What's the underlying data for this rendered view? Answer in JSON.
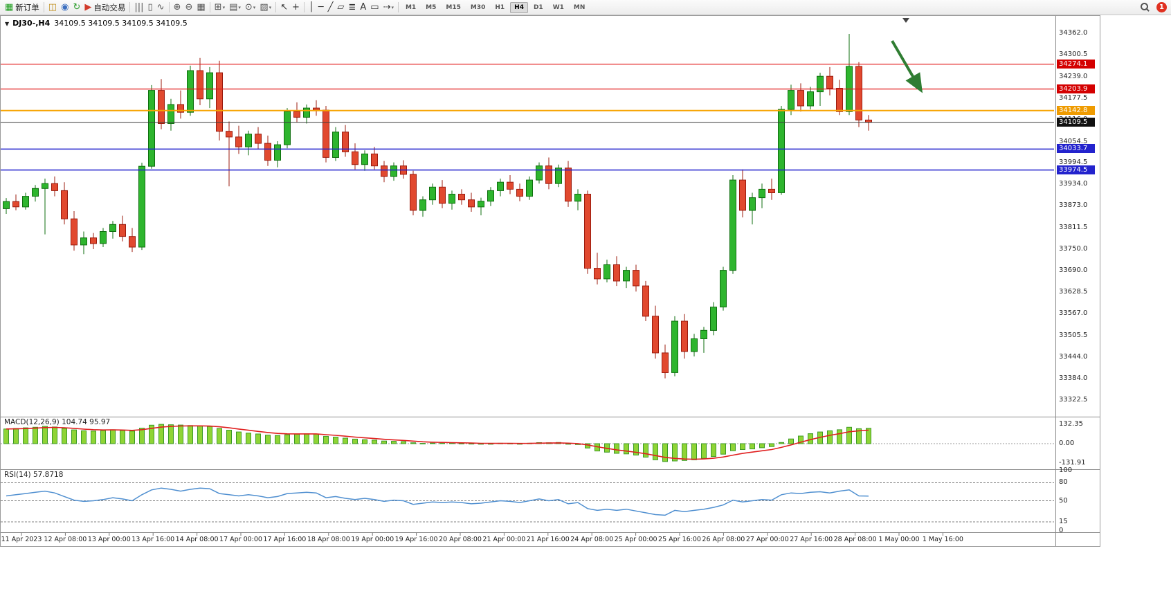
{
  "toolbar": {
    "items": [
      {
        "type": "button",
        "name": "new-order-button",
        "icon": "new-order-icon",
        "glyph": "▦",
        "color": "#1c9c1c",
        "label": "新订单"
      },
      {
        "type": "sep"
      },
      {
        "type": "icon",
        "name": "charts-icon",
        "glyph": "◫",
        "color": "#c09020"
      },
      {
        "type": "icon",
        "name": "market-watch-icon",
        "glyph": "◉",
        "color": "#3a6ec0"
      },
      {
        "type": "icon",
        "name": "refresh-cycle-icon",
        "glyph": "↻",
        "color": "#2f9e2f"
      },
      {
        "type": "button",
        "name": "auto-trading-button",
        "icon": "auto-trading-icon",
        "glyph": "▶",
        "color": "#d23b2b",
        "label": "自动交易"
      },
      {
        "type": "sep"
      },
      {
        "type": "icon",
        "name": "bar-chart-type-icon",
        "glyph": "|||",
        "color": "#555555"
      },
      {
        "type": "icon",
        "name": "candlestick-chart-type-icon",
        "glyph": "▯",
        "color": "#555555"
      },
      {
        "type": "icon",
        "name": "line-chart-type-icon",
        "glyph": "∿",
        "color": "#555555"
      },
      {
        "type": "sep"
      },
      {
        "type": "icon",
        "name": "zoom-in-icon",
        "glyph": "⊕",
        "color": "#555555"
      },
      {
        "type": "icon",
        "name": "zoom-out-icon",
        "glyph": "⊖",
        "color": "#555555"
      },
      {
        "type": "icon",
        "name": "tile-windows-icon",
        "glyph": "▦",
        "color": "#555555"
      },
      {
        "type": "sep"
      },
      {
        "type": "icon",
        "name": "new-chart-icon",
        "glyph": "⊞",
        "color": "#555555",
        "caret": true
      },
      {
        "type": "icon",
        "name": "profiles-icon",
        "glyph": "▤",
        "color": "#555555",
        "caret": true
      },
      {
        "type": "icon",
        "name": "period-clock-icon",
        "glyph": "⊙",
        "color": "#555555",
        "caret": true
      },
      {
        "type": "icon",
        "name": "template-icon",
        "glyph": "▨",
        "color": "#555555",
        "caret": true
      },
      {
        "type": "sep"
      },
      {
        "type": "icon",
        "name": "cursor-icon",
        "glyph": "↖",
        "color": "#333333"
      },
      {
        "type": "icon",
        "name": "crosshair-icon",
        "glyph": "+",
        "color": "#333333"
      },
      {
        "type": "sep"
      },
      {
        "type": "icon",
        "name": "vertical-line-icon",
        "glyph": "│",
        "color": "#333333"
      },
      {
        "type": "icon",
        "name": "horizontal-line-icon",
        "glyph": "─",
        "color": "#333333"
      },
      {
        "type": "icon",
        "name": "trendline-icon",
        "glyph": "╱",
        "color": "#333333"
      },
      {
        "type": "icon",
        "name": "channel-icon",
        "glyph": "▱",
        "color": "#333333"
      },
      {
        "type": "icon",
        "name": "fibonacci-icon",
        "glyph": "≣",
        "color": "#333333"
      },
      {
        "type": "icon",
        "name": "text-icon",
        "glyph": "A",
        "color": "#333333"
      },
      {
        "type": "icon",
        "name": "text-label-icon",
        "glyph": "▭",
        "color": "#333333"
      },
      {
        "type": "icon",
        "name": "arrows-tool-icon",
        "glyph": "⇢",
        "color": "#333333",
        "caret": true
      },
      {
        "type": "sep"
      },
      {
        "type": "tf-group"
      },
      {
        "type": "spacer"
      },
      {
        "type": "search"
      },
      {
        "type": "badge"
      }
    ],
    "timeframes": {
      "items": [
        "M1",
        "M5",
        "M15",
        "M30",
        "H1",
        "H4",
        "D1",
        "W1",
        "MN"
      ],
      "active": "H4"
    },
    "notification_count": "1"
  },
  "chart": {
    "symbol_label": "DJ30-,H4",
    "ohlc_label": "34109.5 34109.5 34109.5 34109.5",
    "macd": {
      "label": "MACD(12,26,9) 104.74 95.97"
    },
    "rsi": {
      "label": "RSI(14) 57.8718"
    },
    "colors": {
      "up_fill": "#2eb52e",
      "up_stroke": "#0e6e0e",
      "down_fill": "#e1492f",
      "down_stroke": "#9b1b0e",
      "macd_fill": "#8fd435",
      "macd_stroke": "#3c9a26",
      "signal": "#e01f1f",
      "rsi": "#4f8fd0",
      "arrow": "#2f7d32",
      "level_red": "#e21a1a",
      "level_orange": "#f7a300",
      "level_blue": "#2323cd",
      "level_black": "#3c3c3c"
    }
  },
  "chart_data": {
    "type": "candlestick",
    "symbol": "DJ30-",
    "timeframe": "H4",
    "current_price": 34109.5,
    "y_ticks": [
      "34362.0",
      "34300.5",
      "34239.0",
      "34177.5",
      "34116.0",
      "34054.5",
      "33994.5",
      "33934.0",
      "33873.0",
      "33811.5",
      "33750.0",
      "33690.0",
      "33628.5",
      "33567.0",
      "33505.5",
      "33444.0",
      "33384.0",
      "33322.5"
    ],
    "x_labels": [
      "11 Apr 2023",
      "12 Apr 08:00",
      "13 Apr 00:00",
      "13 Apr 16:00",
      "14 Apr 08:00",
      "17 Apr 00:00",
      "17 Apr 16:00",
      "18 Apr 08:00",
      "19 Apr 00:00",
      "19 Apr 16:00",
      "20 Apr 08:00",
      "21 Apr 00:00",
      "21 Apr 16:00",
      "24 Apr 08:00",
      "25 Apr 00:00",
      "25 Apr 16:00",
      "26 Apr 08:00",
      "27 Apr 00:00",
      "27 Apr 16:00",
      "28 Apr 08:00",
      "1 May 00:00",
      "1 May 16:00"
    ],
    "levels": [
      {
        "price": 34274.1,
        "label": "34274.1",
        "color": "#e21a1a",
        "tag_bg": "#d40000",
        "width": 1.2
      },
      {
        "price": 34203.9,
        "label": "34203.9",
        "color": "#e21a1a",
        "tag_bg": "#d40000",
        "width": 1.2
      },
      {
        "price": 34142.8,
        "label": "34142.8",
        "color": "#f7a300",
        "tag_bg": "#ef9b00",
        "width": 2
      },
      {
        "price": 34109.5,
        "label": "34109.5",
        "color": "#3c3c3c",
        "tag_bg": "#101010",
        "width": 1
      },
      {
        "price": 34033.7,
        "label": "34033.7",
        "color": "#2323cd",
        "tag_bg": "#2323cd",
        "width": 1.5
      },
      {
        "price": 33974.5,
        "label": "33974.5",
        "color": "#2323cd",
        "tag_bg": "#2323cd",
        "width": 1.5
      }
    ],
    "ohlc": [
      [
        33865,
        33895,
        33850,
        33885
      ],
      [
        33885,
        33905,
        33860,
        33870
      ],
      [
        33870,
        33910,
        33862,
        33900
      ],
      [
        33900,
        33932,
        33885,
        33922
      ],
      [
        33922,
        33950,
        33792,
        33936
      ],
      [
        33936,
        33956,
        33900,
        33916
      ],
      [
        33916,
        33940,
        33820,
        33836
      ],
      [
        33836,
        33858,
        33746,
        33762
      ],
      [
        33762,
        33800,
        33736,
        33782
      ],
      [
        33782,
        33796,
        33750,
        33766
      ],
      [
        33766,
        33810,
        33756,
        33800
      ],
      [
        33800,
        33830,
        33780,
        33820
      ],
      [
        33820,
        33845,
        33772,
        33786
      ],
      [
        33786,
        33810,
        33742,
        33756
      ],
      [
        33756,
        33995,
        33748,
        33985
      ],
      [
        33985,
        34215,
        33978,
        34200
      ],
      [
        34200,
        34232,
        34090,
        34106
      ],
      [
        34106,
        34176,
        34086,
        34160
      ],
      [
        34160,
        34200,
        34120,
        34138
      ],
      [
        34138,
        34270,
        34128,
        34256
      ],
      [
        34256,
        34292,
        34158,
        34176
      ],
      [
        34176,
        34266,
        34150,
        34250
      ],
      [
        34250,
        34284,
        34058,
        34084
      ],
      [
        34084,
        34112,
        33928,
        34068
      ],
      [
        34068,
        34100,
        34020,
        34040
      ],
      [
        34040,
        34086,
        34016,
        34076
      ],
      [
        34076,
        34096,
        34034,
        34050
      ],
      [
        34050,
        34072,
        33986,
        34002
      ],
      [
        34002,
        34056,
        33982,
        34046
      ],
      [
        34046,
        34150,
        34036,
        34140
      ],
      [
        34140,
        34166,
        34110,
        34124
      ],
      [
        34124,
        34160,
        34106,
        34150
      ],
      [
        34150,
        34172,
        34128,
        34144
      ],
      [
        34144,
        34156,
        33996,
        34010
      ],
      [
        34010,
        34096,
        34000,
        34082
      ],
      [
        34082,
        34102,
        34012,
        34026
      ],
      [
        34026,
        34050,
        33976,
        33990
      ],
      [
        33990,
        34030,
        33972,
        34020
      ],
      [
        34020,
        34040,
        33976,
        33986
      ],
      [
        33986,
        34000,
        33940,
        33956
      ],
      [
        33956,
        33996,
        33944,
        33986
      ],
      [
        33986,
        34002,
        33950,
        33962
      ],
      [
        33962,
        33972,
        33846,
        33860
      ],
      [
        33860,
        33900,
        33842,
        33890
      ],
      [
        33890,
        33936,
        33876,
        33926
      ],
      [
        33926,
        33946,
        33866,
        33880
      ],
      [
        33880,
        33916,
        33862,
        33906
      ],
      [
        33906,
        33920,
        33876,
        33890
      ],
      [
        33890,
        33910,
        33856,
        33870
      ],
      [
        33870,
        33896,
        33846,
        33886
      ],
      [
        33886,
        33926,
        33872,
        33916
      ],
      [
        33916,
        33950,
        33900,
        33940
      ],
      [
        33940,
        33960,
        33906,
        33920
      ],
      [
        33920,
        33936,
        33886,
        33900
      ],
      [
        33900,
        33956,
        33890,
        33946
      ],
      [
        33946,
        33996,
        33936,
        33986
      ],
      [
        33986,
        34010,
        33920,
        33936
      ],
      [
        33936,
        33990,
        33926,
        33980
      ],
      [
        33980,
        34000,
        33870,
        33886
      ],
      [
        33886,
        33920,
        33860,
        33906
      ],
      [
        33906,
        33916,
        33680,
        33696
      ],
      [
        33696,
        33740,
        33650,
        33666
      ],
      [
        33666,
        33720,
        33656,
        33706
      ],
      [
        33706,
        33730,
        33646,
        33660
      ],
      [
        33660,
        33700,
        33640,
        33690
      ],
      [
        33690,
        33706,
        33630,
        33646
      ],
      [
        33646,
        33660,
        33546,
        33560
      ],
      [
        33560,
        33590,
        33440,
        33456
      ],
      [
        33456,
        33480,
        33384,
        33400
      ],
      [
        33400,
        33560,
        33390,
        33546
      ],
      [
        33546,
        33566,
        33440,
        33460
      ],
      [
        33460,
        33510,
        33446,
        33496
      ],
      [
        33496,
        33530,
        33456,
        33520
      ],
      [
        33520,
        33600,
        33506,
        33586
      ],
      [
        33586,
        33700,
        33576,
        33690
      ],
      [
        33690,
        33960,
        33680,
        33946
      ],
      [
        33946,
        33976,
        33840,
        33860
      ],
      [
        33860,
        33910,
        33820,
        33896
      ],
      [
        33896,
        33936,
        33866,
        33920
      ],
      [
        33920,
        33950,
        33890,
        33910
      ],
      [
        33910,
        34156,
        33904,
        34146
      ],
      [
        34146,
        34216,
        34130,
        34200
      ],
      [
        34200,
        34220,
        34140,
        34156
      ],
      [
        34156,
        34210,
        34146,
        34196
      ],
      [
        34196,
        34250,
        34156,
        34240
      ],
      [
        34240,
        34266,
        34186,
        34206
      ],
      [
        34206,
        34230,
        34130,
        34140
      ],
      [
        34140,
        34360,
        34130,
        34268
      ],
      [
        34268,
        34280,
        34096,
        34116
      ],
      [
        34116,
        34130,
        34086,
        34109.5
      ]
    ],
    "macd_histogram": [
      100,
      104,
      108,
      112,
      118,
      114,
      104,
      94,
      88,
      86,
      90,
      95,
      90,
      86,
      106,
      126,
      132,
      129,
      127,
      124,
      121,
      117,
      104,
      92,
      80,
      72,
      66,
      58,
      56,
      61,
      65,
      67,
      66,
      50,
      45,
      38,
      31,
      27,
      24,
      18,
      16,
      14,
      6,
      2,
      4,
      5,
      4,
      2,
      1,
      -2,
      0,
      3,
      2,
      0,
      3,
      7,
      6,
      8,
      -2,
      -6,
      -30,
      -50,
      -58,
      -66,
      -70,
      -78,
      -92,
      -110,
      -122,
      -118,
      -115,
      -110,
      -100,
      -88,
      -72,
      -48,
      -40,
      -36,
      -28,
      -20,
      8,
      32,
      52,
      68,
      80,
      88,
      95,
      112,
      102,
      104.74
    ],
    "macd_values": {
      "main": 104.74,
      "signal": 95.97
    },
    "macd_ticks": [
      "132.35",
      "0.00",
      "-131.91"
    ],
    "rsi_series": [
      58,
      60,
      62,
      64,
      66,
      63,
      57,
      51,
      49,
      50,
      52,
      55,
      53,
      50,
      60,
      68,
      71,
      69,
      66,
      69,
      71,
      70,
      62,
      60,
      58,
      60,
      58,
      55,
      57,
      62,
      63,
      64,
      63,
      55,
      57,
      54,
      52,
      54,
      52,
      49,
      51,
      50,
      44,
      46,
      48,
      47,
      48,
      47,
      45,
      46,
      48,
      50,
      49,
      47,
      50,
      53,
      50,
      52,
      45,
      47,
      37,
      34,
      36,
      34,
      36,
      33,
      30,
      27,
      26,
      34,
      32,
      34,
      36,
      39,
      43,
      51,
      48,
      50,
      52,
      51,
      60,
      63,
      62,
      64,
      65,
      63,
      66,
      68,
      58,
      57.87
    ],
    "rsi_value": 57.8718,
    "rsi_levels": [
      80,
      50,
      15
    ],
    "rsi_ticks": [
      "100",
      "80",
      "50",
      "15",
      "0"
    ],
    "annotations": [
      {
        "type": "arrow",
        "name": "down-trend-arrow",
        "color": "#2f7d32"
      }
    ]
  }
}
